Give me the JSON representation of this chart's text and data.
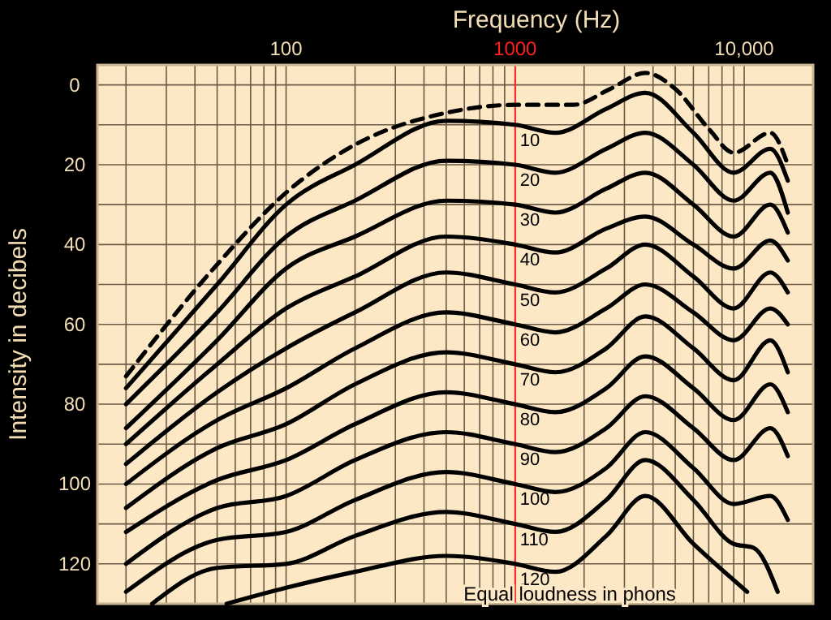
{
  "chart_data": {
    "type": "line",
    "xlabel": "Frequency (Hz)",
    "ylabel": "Intensity in decibels",
    "log": "x",
    "grid": true,
    "xlim": [
      15,
      20000
    ],
    "ylim": [
      130,
      -5
    ],
    "xticks": [
      {
        "value": 20,
        "label": null
      },
      {
        "value": 30,
        "label": null
      },
      {
        "value": 40,
        "label": null
      },
      {
        "value": 50,
        "label": null
      },
      {
        "value": 60,
        "label": null
      },
      {
        "value": 70,
        "label": null
      },
      {
        "value": 80,
        "label": null
      },
      {
        "value": 90,
        "label": null
      },
      100,
      {
        "value": 200,
        "label": null
      },
      {
        "value": 300,
        "label": null
      },
      {
        "value": 400,
        "label": null
      },
      {
        "value": 500,
        "label": null
      },
      {
        "value": 600,
        "label": null
      },
      {
        "value": 700,
        "label": null
      },
      {
        "value": 800,
        "label": null
      },
      {
        "value": 900,
        "label": null
      },
      1000,
      {
        "value": 2000,
        "label": null
      },
      {
        "value": 3000,
        "label": null
      },
      {
        "value": 4000,
        "label": null
      },
      {
        "value": 5000,
        "label": null
      },
      {
        "value": 6000,
        "label": null
      },
      {
        "value": 7000,
        "label": null
      },
      {
        "value": 8000,
        "label": null
      },
      {
        "value": 9000,
        "label": null
      },
      {
        "value": 10000,
        "label": "10,000"
      }
    ],
    "yticks": [
      0,
      {
        "value": 10,
        "label": null
      },
      20,
      {
        "value": 30,
        "label": null
      },
      40,
      {
        "value": 50,
        "label": null
      },
      60,
      {
        "value": 70,
        "label": null
      },
      80,
      {
        "value": 90,
        "label": null
      },
      100,
      {
        "value": 110,
        "label": null
      },
      120
    ],
    "ref_lines": [
      {
        "axis": "x",
        "value": 1000,
        "color": "#ff2020"
      }
    ],
    "annotations": [
      "Equal loudness in phons"
    ],
    "series": [
      {
        "color": "#000000",
        "line_style": "dashed",
        "x": [
          20,
          50,
          100,
          200,
          500,
          1000,
          1800,
          2600,
          3700,
          5000,
          7000,
          9000,
          13000,
          15500
        ],
        "values": [
          73,
          45,
          27,
          15,
          7,
          5,
          5,
          1,
          -3,
          1,
          11,
          17,
          12,
          20
        ]
      },
      {
        "name": "10",
        "color": "#000000",
        "x": [
          20,
          50,
          100,
          200,
          500,
          1000,
          1500,
          2500,
          3700,
          6000,
          9000,
          13000,
          15500
        ],
        "values": [
          76,
          50,
          30,
          20,
          9,
          10,
          12,
          6,
          2,
          12,
          22,
          16,
          24
        ]
      },
      {
        "name": "20",
        "color": "#000000",
        "x": [
          20,
          50,
          100,
          200,
          500,
          1000,
          1500,
          2500,
          3700,
          6000,
          9000,
          13000,
          15500
        ],
        "values": [
          80,
          57,
          38,
          29,
          19,
          20,
          22,
          16,
          12,
          20,
          29,
          22,
          32
        ]
      },
      {
        "name": "30",
        "color": "#000000",
        "x": [
          20,
          50,
          100,
          200,
          500,
          1000,
          1500,
          2500,
          3700,
          6000,
          9000,
          13000,
          15500
        ],
        "values": [
          86,
          64,
          46,
          38,
          29,
          30,
          32,
          26,
          22,
          30,
          38,
          30,
          37
        ]
      },
      {
        "name": "40",
        "color": "#000000",
        "x": [
          20,
          50,
          100,
          200,
          500,
          1000,
          1500,
          2500,
          3700,
          6000,
          9000,
          13000,
          15500
        ],
        "values": [
          90,
          70,
          56,
          48,
          38,
          40,
          42,
          36,
          33,
          40,
          46,
          39,
          44
        ]
      },
      {
        "name": "50",
        "color": "#000000",
        "x": [
          20,
          50,
          100,
          200,
          500,
          1000,
          1500,
          2500,
          3700,
          6000,
          9000,
          13000,
          15500
        ],
        "values": [
          95,
          77,
          66,
          57,
          47,
          50,
          52,
          46,
          40,
          48,
          56,
          47,
          52
        ]
      },
      {
        "name": "60",
        "color": "#000000",
        "x": [
          20,
          50,
          100,
          200,
          500,
          1000,
          1500,
          2500,
          3700,
          6000,
          9000,
          13000,
          15500
        ],
        "values": [
          100,
          84,
          76,
          66,
          57,
          60,
          62,
          56,
          50,
          57,
          64,
          56,
          60
        ]
      },
      {
        "name": "70",
        "color": "#000000",
        "x": [
          20,
          50,
          100,
          200,
          500,
          1000,
          1500,
          2500,
          3700,
          6000,
          9000,
          13000,
          15500
        ],
        "values": [
          106,
          91,
          85,
          75,
          67,
          70,
          72,
          66,
          58,
          66,
          74,
          64,
          72
        ]
      },
      {
        "name": "80",
        "color": "#000000",
        "x": [
          20,
          50,
          100,
          200,
          500,
          1000,
          1500,
          2500,
          3700,
          6000,
          9000,
          13000,
          15500
        ],
        "values": [
          112,
          99,
          94,
          85,
          77,
          80,
          82,
          76,
          68,
          76,
          84,
          75,
          82
        ]
      },
      {
        "name": "90",
        "color": "#000000",
        "x": [
          20,
          50,
          100,
          200,
          500,
          1000,
          1500,
          2500,
          3700,
          6000,
          9000,
          13000,
          15500
        ],
        "values": [
          120,
          106,
          103,
          94,
          87,
          90,
          92,
          86,
          78,
          86,
          94,
          86,
          93
        ]
      },
      {
        "name": "100",
        "color": "#000000",
        "x": [
          20,
          50,
          100,
          200,
          500,
          1000,
          1500,
          2500,
          3700,
          6000,
          9000,
          13000,
          15500
        ],
        "values": [
          127,
          114,
          112,
          104,
          97,
          100,
          102,
          96,
          87,
          96,
          105,
          103,
          109
        ]
      },
      {
        "name": "110",
        "color": "#000000",
        "x": [
          26,
          50,
          100,
          200,
          500,
          1000,
          1500,
          2500,
          3700,
          6000,
          9000,
          11000,
          14000
        ],
        "values": [
          130,
          121,
          120,
          113,
          107,
          110,
          112,
          104,
          94,
          104,
          115,
          116,
          127
        ]
      },
      {
        "name": "120",
        "color": "#000000",
        "x": [
          55,
          100,
          200,
          500,
          1000,
          1500,
          2500,
          3700,
          6000,
          10300
        ],
        "values": [
          130,
          126,
          122,
          118,
          120,
          122,
          113,
          103,
          115,
          127
        ]
      }
    ]
  }
}
